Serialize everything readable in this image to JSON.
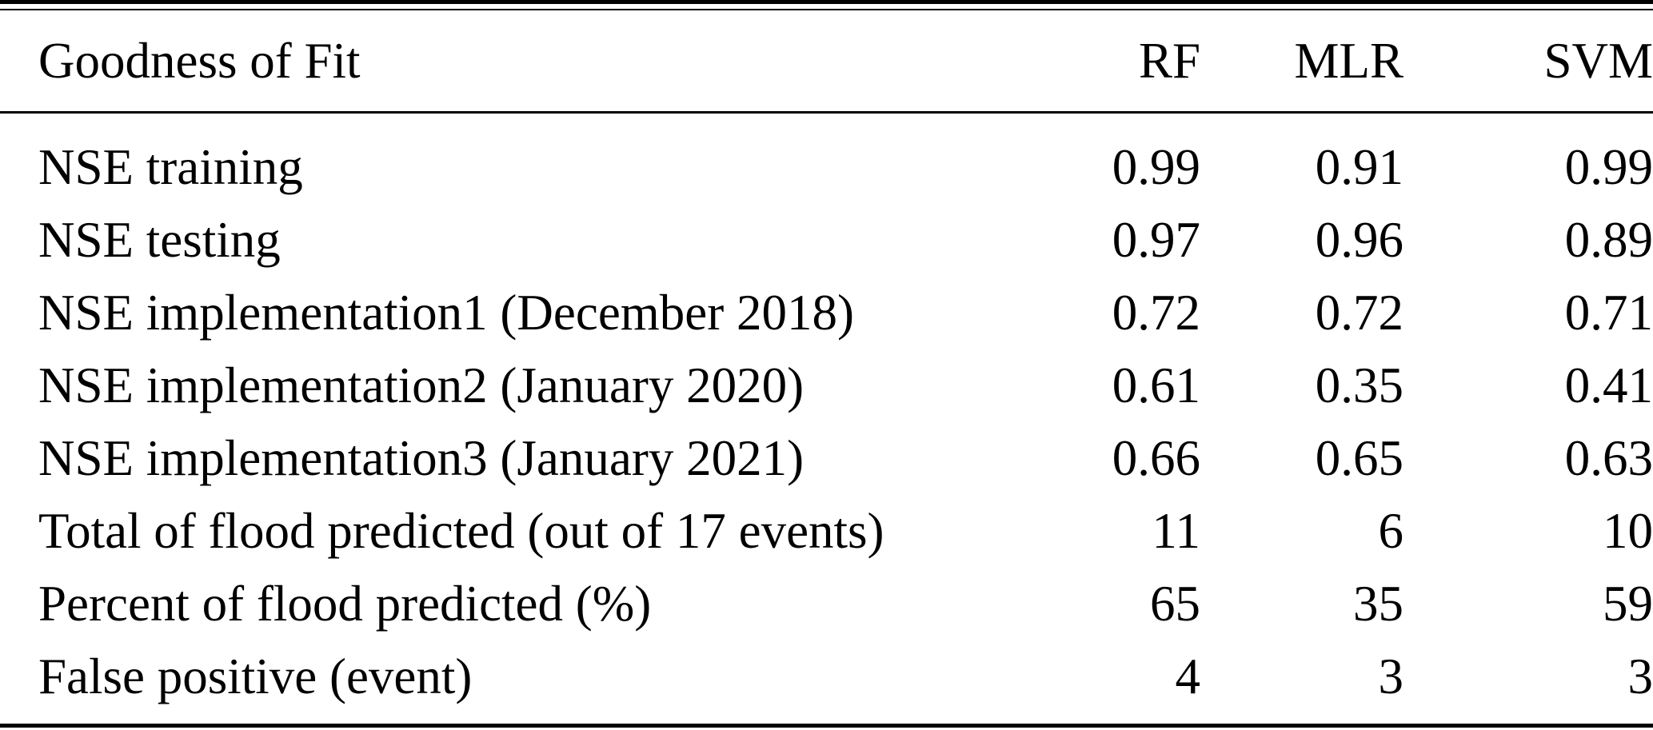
{
  "colors": {
    "background": "#ffffff",
    "text": "#000000",
    "rule": "#000000"
  },
  "table": {
    "header": {
      "label": "Goodness of Fit",
      "columns": [
        "RF",
        "MLR",
        "SVM"
      ]
    },
    "rows": [
      {
        "label": "NSE training",
        "values": [
          "0.99",
          "0.91",
          "0.99"
        ]
      },
      {
        "label": "NSE testing",
        "values": [
          "0.97",
          "0.96",
          "0.89"
        ]
      },
      {
        "label": "NSE implementation1 (December 2018)",
        "values": [
          "0.72",
          "0.72",
          "0.71"
        ]
      },
      {
        "label": "NSE implementation2 (January 2020)",
        "values": [
          "0.61",
          "0.35",
          "0.41"
        ]
      },
      {
        "label": "NSE implementation3 (January 2021)",
        "values": [
          "0.66",
          "0.65",
          "0.63"
        ]
      },
      {
        "label": "Total of flood predicted (out of 17 events)",
        "values": [
          "11",
          "6",
          "10"
        ]
      },
      {
        "label": "Percent of flood predicted (%)",
        "values": [
          "65",
          "35",
          "59"
        ]
      },
      {
        "label": "False positive (event)",
        "values": [
          "4",
          "3",
          "3"
        ]
      }
    ]
  },
  "chart_data": {
    "type": "table",
    "title": "Goodness of Fit",
    "columns": [
      "Goodness of Fit",
      "RF",
      "MLR",
      "SVM"
    ],
    "rows": [
      [
        "NSE training",
        0.99,
        0.91,
        0.99
      ],
      [
        "NSE testing",
        0.97,
        0.96,
        0.89
      ],
      [
        "NSE implementation1 (December 2018)",
        0.72,
        0.72,
        0.71
      ],
      [
        "NSE implementation2 (January 2020)",
        0.61,
        0.35,
        0.41
      ],
      [
        "NSE implementation3 (January 2021)",
        0.66,
        0.65,
        0.63
      ],
      [
        "Total of flood predicted (out of 17 events)",
        11,
        6,
        10
      ],
      [
        "Percent of flood predicted (%)",
        65,
        35,
        59
      ],
      [
        "False positive (event)",
        4,
        3,
        3
      ]
    ]
  }
}
